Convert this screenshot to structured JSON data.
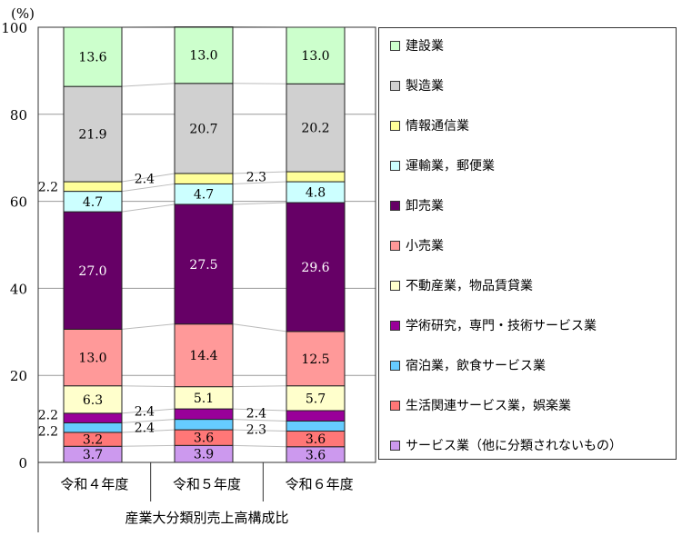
{
  "chart_data": {
    "type": "bar",
    "stacked": true,
    "unit_label": "(%)",
    "xlabel": "産業大分類別売上高構成比",
    "categories": [
      "令和４年度",
      "令和５年度",
      "令和６年度"
    ],
    "ylim": [
      0,
      100
    ],
    "yticks": [
      0,
      20,
      40,
      60,
      80,
      100
    ],
    "grid": true,
    "legend_position": "right",
    "series": [
      {
        "name": "サービス業（他に分類されないもの）",
        "color": "#cc99ee",
        "values": [
          3.7,
          3.9,
          3.6
        ],
        "label_outside": false
      },
      {
        "name": "生活関連サービス業，娯楽業",
        "color": "#ff7777",
        "values": [
          3.2,
          3.6,
          3.6
        ],
        "label_outside": false
      },
      {
        "name": "宿泊業，飲食サービス業",
        "color": "#66ccff",
        "values": [
          2.2,
          2.4,
          2.3
        ],
        "label_outside": true
      },
      {
        "name": "学術研究，専門・技術サービス業",
        "color": "#990099",
        "values": [
          2.2,
          2.4,
          2.4
        ],
        "label_outside": true
      },
      {
        "name": "不動産業，物品賃貸業",
        "color": "#ffffcc",
        "values": [
          6.3,
          5.1,
          5.7
        ],
        "label_outside": false
      },
      {
        "name": "小売業",
        "color": "#ff9999",
        "values": [
          13.0,
          14.4,
          12.5
        ],
        "label_outside": false
      },
      {
        "name": "卸売業",
        "color": "#660066",
        "values": [
          27.0,
          27.5,
          29.6
        ],
        "label_outside": false,
        "label_color": "#ffffff"
      },
      {
        "name": "運輸業，郵便業",
        "color": "#ccffff",
        "values": [
          4.7,
          4.7,
          4.8
        ],
        "label_outside": false
      },
      {
        "name": "情報通信業",
        "color": "#ffff99",
        "values": [
          2.2,
          2.4,
          2.3
        ],
        "label_outside": true
      },
      {
        "name": "製造業",
        "color": "#d0d0d0",
        "values": [
          21.9,
          20.7,
          20.2
        ],
        "label_outside": false
      },
      {
        "name": "建設業",
        "color": "#ccffcc",
        "values": [
          13.6,
          13.0,
          13.0
        ],
        "label_outside": false
      }
    ]
  }
}
